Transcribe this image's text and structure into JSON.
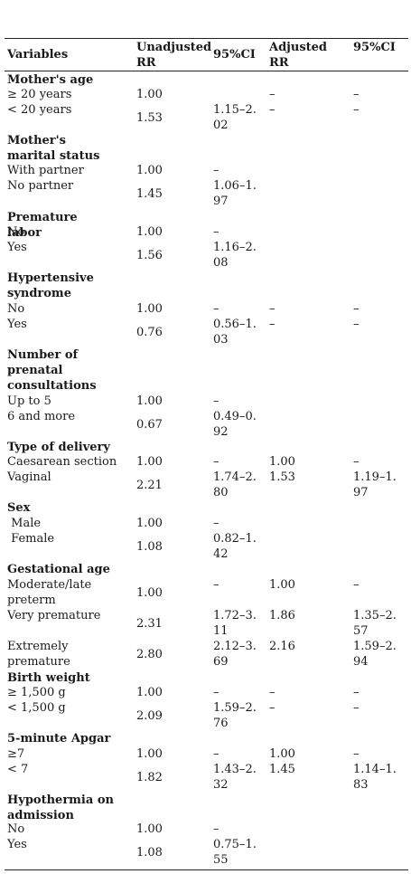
{
  "table": {
    "headers": [
      "Variables",
      "Unadjusted RR",
      "95%CI",
      "Adjusted RR",
      "95%CI"
    ],
    "sections": [
      {
        "title": "Mother's age",
        "rows": [
          {
            "label": "≥ 20 years",
            "urr": "1.00",
            "uci": "",
            "arr": "–",
            "aci": "–"
          },
          {
            "label": "< 20 years",
            "urr": "1.53",
            "uci": "1.15–2.02",
            "arr": "–",
            "aci": "–"
          }
        ]
      },
      {
        "title": "Mother's marital status",
        "rows": [
          {
            "label": "With partner",
            "urr": "1.00",
            "uci": "–",
            "arr": "",
            "aci": ""
          },
          {
            "label": "No partner",
            "urr": "1.45",
            "uci": "1.06–1.97",
            "arr": "",
            "aci": ""
          }
        ]
      },
      {
        "title": "Premature labor",
        "rows": [
          {
            "label": "No",
            "urr": "1.00",
            "uci": "–",
            "arr": "",
            "aci": ""
          },
          {
            "label": "Yes",
            "urr": "1.56",
            "uci": "1.16–2.08",
            "arr": "",
            "aci": ""
          }
        ]
      },
      {
        "title": "Hypertensive syndrome",
        "rows": [
          {
            "label": "No",
            "urr": "1.00",
            "uci": "–",
            "arr": "–",
            "aci": "–"
          },
          {
            "label": "Yes",
            "urr": "0.76",
            "uci": "0.56–1.03",
            "arr": "–",
            "aci": "–"
          }
        ]
      },
      {
        "title": "Number of prenatal consultations",
        "rows": [
          {
            "label": "Up to 5",
            "urr": "1.00",
            "uci": "–",
            "arr": "",
            "aci": ""
          },
          {
            "label": "6 and more",
            "urr": "0.67",
            "uci": "0.49–0.92",
            "arr": "",
            "aci": ""
          }
        ]
      },
      {
        "title": "Type of delivery",
        "rows": [
          {
            "label": "Caesarean section",
            "urr": "1.00",
            "uci": "–",
            "arr": "1.00",
            "aci": "–"
          },
          {
            "label": "Vaginal",
            "urr": "2.21",
            "uci": "1.74–2.80",
            "arr": "1.53",
            "aci": "1.19–1.97"
          }
        ]
      },
      {
        "title": "Sex",
        "rows": [
          {
            "label": " Male",
            "urr": "1.00",
            "uci": "–",
            "arr": "",
            "aci": ""
          },
          {
            "label": " Female",
            "urr": "1.08",
            "uci": "0.82–1.42",
            "arr": "",
            "aci": ""
          }
        ]
      },
      {
        "title": "Gestational age",
        "rows": [
          {
            "label": "Moderate/late preterm",
            "urr": "1.00",
            "uci": "–",
            "arr": "1.00",
            "aci": "–"
          },
          {
            "label": "Very premature",
            "urr": "2.31",
            "uci": "1.72–3.11",
            "arr": "1.86",
            "aci": "1.35–2.57"
          },
          {
            "label": "Extremely premature",
            "urr": "2.80",
            "uci": "2.12–3.69",
            "arr": "2.16",
            "aci": "1.59–2.94"
          }
        ]
      },
      {
        "title": "Birth weight",
        "rows": [
          {
            "label": "≥ 1,500 g",
            "urr": "1.00",
            "uci": "–",
            "arr": "–",
            "aci": "–"
          },
          {
            "label": "< 1,500 g",
            "urr": "2.09",
            "uci": "1.59–2.76",
            "arr": "–",
            "aci": "–"
          }
        ]
      },
      {
        "title": "5-minute Apgar",
        "rows": [
          {
            "label": "≥7",
            "urr": "1.00",
            "uci": "–",
            "arr": "1.00",
            "aci": "–"
          },
          {
            "label": "< 7",
            "urr": "1.82",
            "uci": "1.43–2.32",
            "arr": "1.45",
            "aci": "1.14–1.83"
          }
        ]
      },
      {
        "title": "Hypothermia on admission",
        "rows": [
          {
            "label": "No",
            "urr": "1.00",
            "uci": "–",
            "arr": "",
            "aci": ""
          },
          {
            "label": "Yes",
            "urr": "1.08",
            "uci": "0.75–1.55",
            "arr": "",
            "aci": ""
          }
        ]
      }
    ]
  }
}
